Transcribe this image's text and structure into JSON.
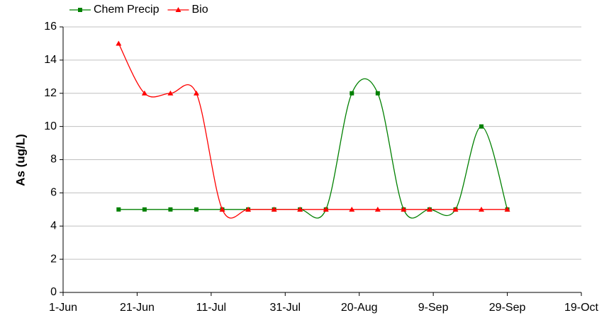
{
  "chart_data": {
    "type": "line",
    "y_label": "As (ug/L)",
    "x": [
      "16-Jun",
      "23-Jun",
      "30-Jun",
      "7-Jul",
      "14-Jul",
      "21-Jul",
      "28-Jul",
      "4-Aug",
      "11-Aug",
      "18-Aug",
      "25-Aug",
      "1-Sep",
      "8-Sep",
      "15-Sep",
      "22-Sep",
      "29-Sep"
    ],
    "series": [
      {
        "name": "Chem Precip",
        "color": "#008000",
        "marker": "square",
        "values": [
          5,
          5,
          5,
          5,
          5,
          5,
          5,
          5,
          5,
          12,
          12,
          5,
          5,
          5,
          10,
          5
        ]
      },
      {
        "name": "Bio",
        "color": "#ff0000",
        "marker": "triangle",
        "values": [
          15,
          12,
          12,
          12,
          5,
          5,
          5,
          5,
          5,
          5,
          5,
          5,
          5,
          5,
          5,
          5
        ]
      }
    ],
    "xlim": [
      "1-Jun",
      "19-Oct"
    ],
    "xticks": [
      "1-Jun",
      "21-Jun",
      "11-Jul",
      "31-Jul",
      "20-Aug",
      "9-Sep",
      "29-Sep",
      "19-Oct"
    ],
    "ylim": [
      0,
      16
    ],
    "yticks": [
      0,
      2,
      4,
      6,
      8,
      10,
      12,
      14,
      16
    ],
    "grid": true,
    "smooth": true,
    "legend": "top"
  }
}
